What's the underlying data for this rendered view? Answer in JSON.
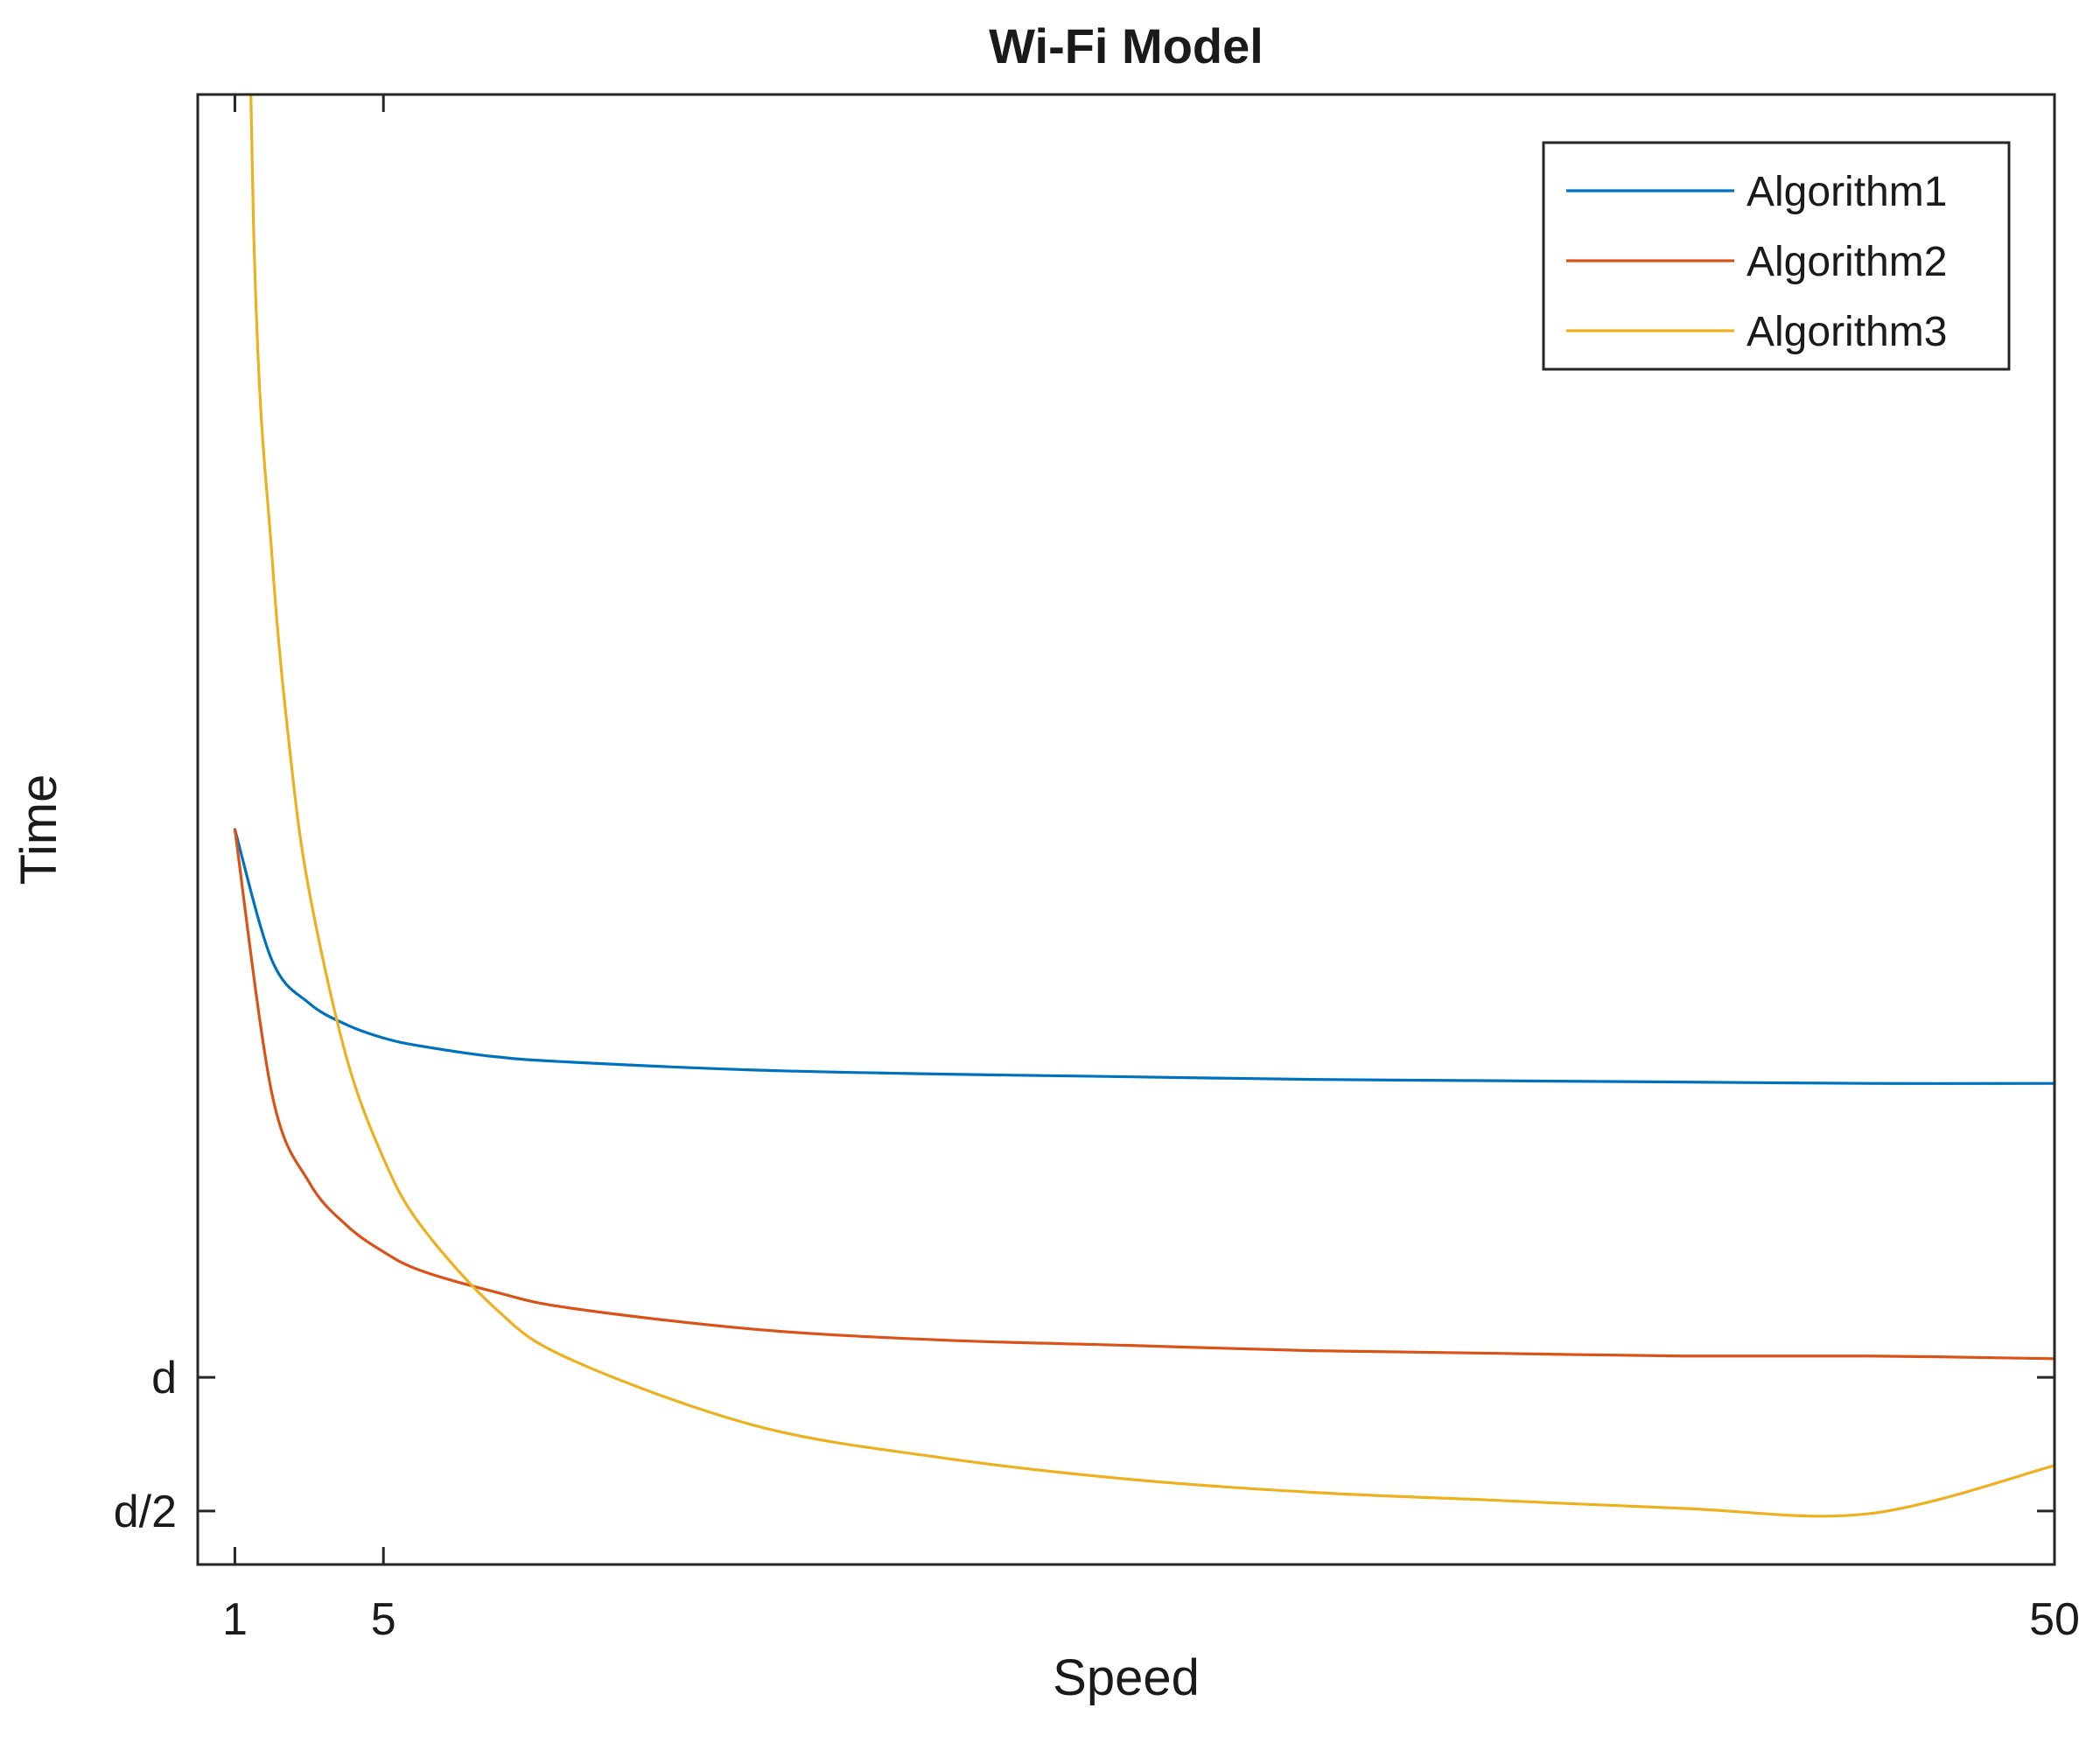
{
  "chart_data": {
    "type": "line",
    "title": "Wi-Fi Model",
    "xlabel": "Speed",
    "ylabel": "Time",
    "xlim": [
      0,
      50
    ],
    "ylim": [
      0.3,
      5.8
    ],
    "xticks": [
      {
        "value": 1,
        "label": "1"
      },
      {
        "value": 5,
        "label": "5"
      },
      {
        "value": 50,
        "label": "50"
      }
    ],
    "yticks": [
      {
        "value": 1.0,
        "label": "d"
      },
      {
        "value": 0.5,
        "label": "d/2"
      }
    ],
    "grid": false,
    "legend_position": "top-right",
    "series": [
      {
        "name": "Algorithm1",
        "color": "#0072BD",
        "x": [
          1,
          2,
          3,
          4,
          5,
          6,
          8,
          10,
          15,
          20,
          25,
          30,
          35,
          40,
          45,
          50
        ],
        "y": [
          3.05,
          2.56,
          2.4,
          2.32,
          2.27,
          2.24,
          2.2,
          2.18,
          2.15,
          2.135,
          2.125,
          2.115,
          2.11,
          2.105,
          2.1,
          2.1
        ]
      },
      {
        "name": "Algorithm2",
        "color": "#D95319",
        "x": [
          1,
          2,
          3,
          4,
          5,
          6,
          8,
          10,
          15,
          20,
          25,
          30,
          35,
          40,
          45,
          50
        ],
        "y": [
          3.05,
          2.06,
          1.73,
          1.57,
          1.47,
          1.4,
          1.32,
          1.26,
          1.18,
          1.14,
          1.12,
          1.1,
          1.09,
          1.08,
          1.08,
          1.07
        ]
      },
      {
        "name": "Algorithm3",
        "color": "#EDB120",
        "x": [
          1,
          1.5,
          2,
          2.5,
          3,
          4,
          5,
          6,
          8,
          10,
          15,
          20,
          25,
          30,
          35,
          40,
          45,
          50
        ],
        "y": [
          9.1,
          5.32,
          4.07,
          3.32,
          2.82,
          2.2,
          1.82,
          1.57,
          1.26,
          1.07,
          0.82,
          0.7,
          0.62,
          0.57,
          0.54,
          0.51,
          0.49,
          0.67
        ]
      }
    ]
  }
}
